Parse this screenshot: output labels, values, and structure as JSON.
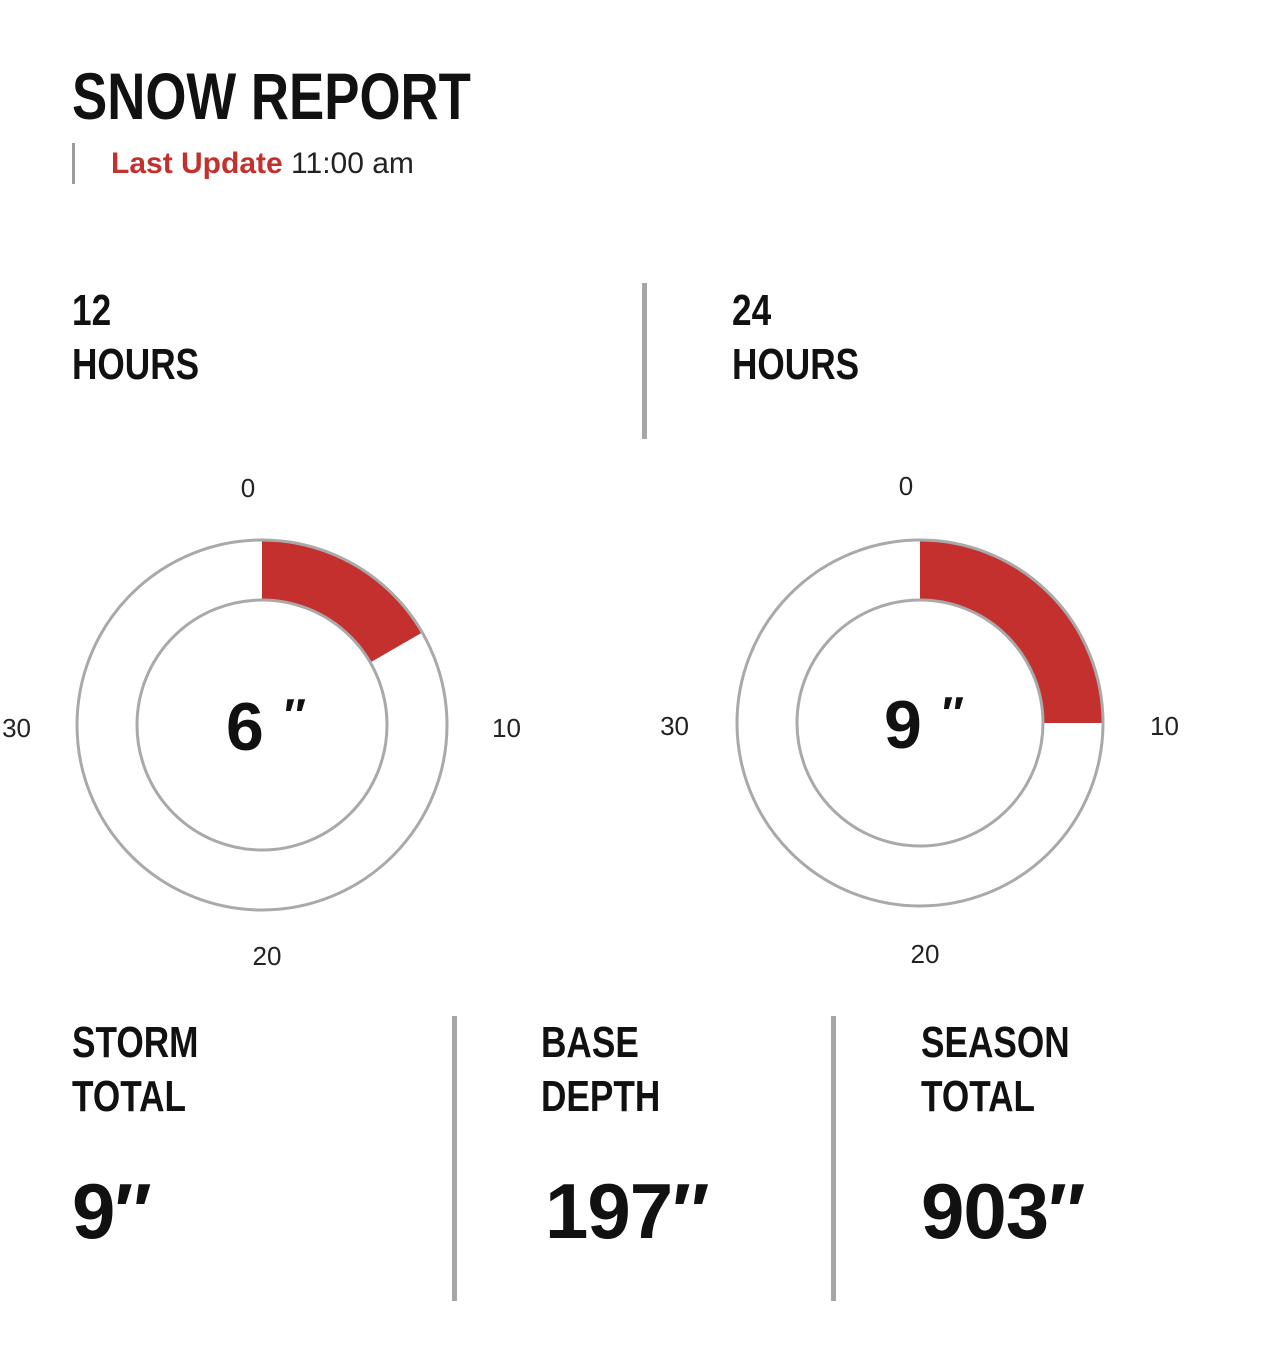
{
  "header": {
    "title": "SNOW REPORT",
    "last_update_label": "Last Update",
    "last_update_time": "11:00 am"
  },
  "gauges": [
    {
      "period_number": "12",
      "period_unit": "HOURS",
      "value": 6,
      "value_label": "6",
      "unit_mark": "″",
      "max": 36,
      "ticks": [
        "0",
        "10",
        "20",
        "30"
      ],
      "fill_color": "#c3302d"
    },
    {
      "period_number": "24",
      "period_unit": "HOURS",
      "value": 9,
      "value_label": "9",
      "unit_mark": "″",
      "max": 36,
      "ticks": [
        "0",
        "10",
        "20",
        "30"
      ],
      "fill_color": "#c3302d"
    }
  ],
  "stats": [
    {
      "line1": "STORM",
      "line2": "TOTAL",
      "value": "9″"
    },
    {
      "line1": "BASE",
      "line2": "DEPTH",
      "value": "197″"
    },
    {
      "line1": "SEASON",
      "line2": "TOTAL",
      "value": "903″"
    }
  ]
}
